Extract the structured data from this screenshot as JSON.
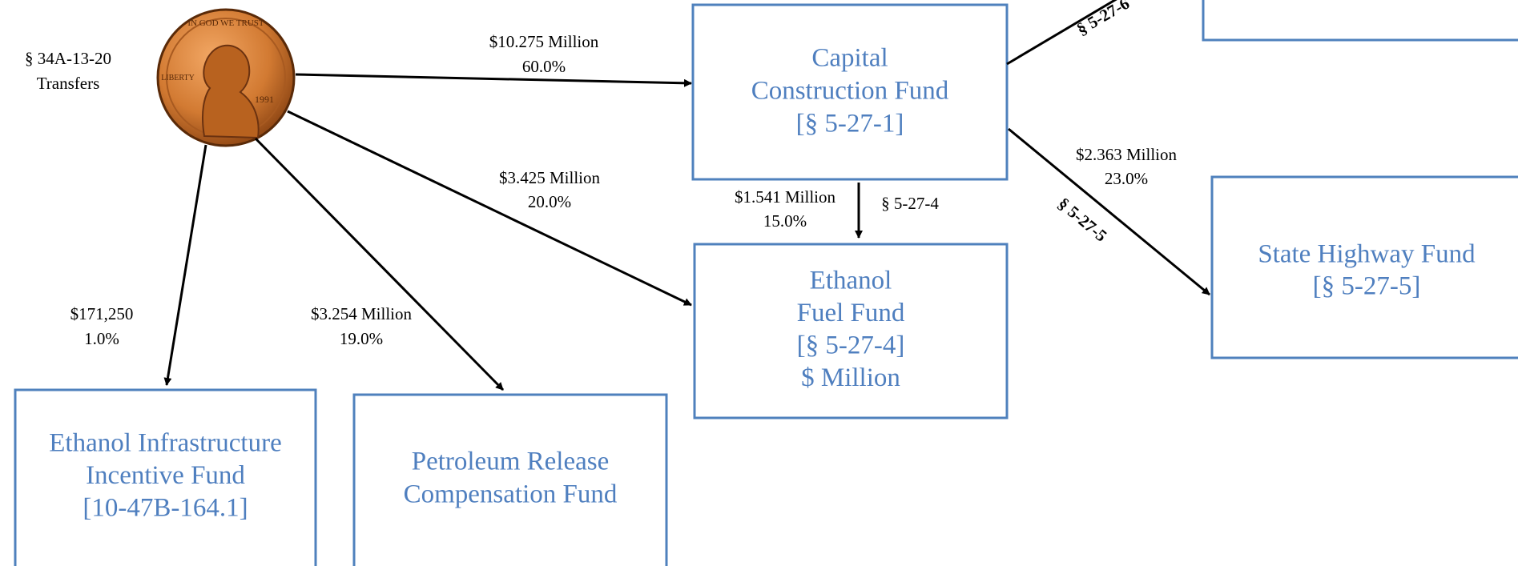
{
  "source": {
    "lines": [
      "§ 34A-13-20",
      "Transfers"
    ],
    "coin": {
      "motto": "IN GOD WE TRUST",
      "word": "LIBERTY",
      "year": "1991"
    }
  },
  "nodes": [
    {
      "lines": [
        "Capital",
        "Construction Fund",
        "[§ 5-27-1]"
      ]
    },
    {
      "lines": [
        "Ethanol",
        "Fuel Fund",
        "[§ 5-27-4]",
        "$ Million"
      ]
    },
    {
      "lines": [
        "State Highway Fund",
        "[§ 5-27-5]"
      ]
    },
    {
      "lines": [
        "Ethanol Infrastructure",
        "Incentive Fund",
        "[10-47B-164.1]"
      ]
    },
    {
      "lines": [
        "Petroleum Release",
        "Compensation Fund"
      ]
    },
    {
      "lines": []
    }
  ],
  "edges": [
    {
      "amount": "$10.275 Million",
      "share": "60.0%"
    },
    {
      "amount": "$3.425 Million",
      "share": "20.0%"
    },
    {
      "amount": "$3.254 Million",
      "share": "19.0%"
    },
    {
      "amount": "$171,250",
      "share": "1.0%"
    },
    {
      "amount": "$1.541 Million",
      "share": "15.0%",
      "statute": "§ 5-27-4"
    },
    {
      "amount": "$2.363 Million",
      "share": "23.0%",
      "statute": "§ 5-27-5"
    },
    {
      "statute": "§ 5-27-6"
    }
  ]
}
